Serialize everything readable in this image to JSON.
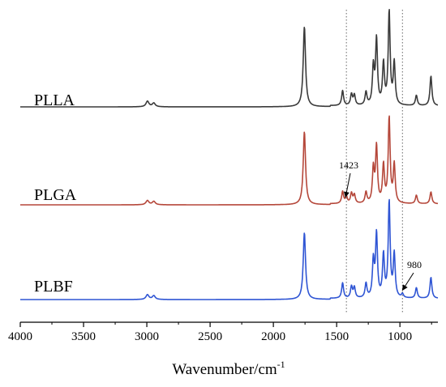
{
  "chart_data": {
    "type": "line",
    "title": "",
    "xlabel": "Wavenumber/cm",
    "xlabel_superscript": "-1",
    "xlim": [
      4000,
      700
    ],
    "x_reversed": true,
    "x_ticks": [
      4000,
      3500,
      3000,
      2500,
      2000,
      1500,
      1000
    ],
    "grid": false,
    "series": [
      {
        "name": "PLLA",
        "color": "#3a3a3a",
        "peaks": [
          {
            "x": 2995,
            "height": 0.06
          },
          {
            "x": 2945,
            "height": 0.04
          },
          {
            "x": 1755,
            "height": 0.86
          },
          {
            "x": 1453,
            "height": 0.16
          },
          {
            "x": 1383,
            "height": 0.12
          },
          {
            "x": 1360,
            "height": 0.11
          },
          {
            "x": 1268,
            "height": 0.14
          },
          {
            "x": 1210,
            "height": 0.4
          },
          {
            "x": 1185,
            "height": 0.7
          },
          {
            "x": 1130,
            "height": 0.44
          },
          {
            "x": 1085,
            "height": 1.0
          },
          {
            "x": 1045,
            "height": 0.45
          },
          {
            "x": 870,
            "height": 0.11
          },
          {
            "x": 755,
            "height": 0.32
          }
        ]
      },
      {
        "name": "PLGA",
        "color": "#b5473a",
        "peaks": [
          {
            "x": 2995,
            "height": 0.05
          },
          {
            "x": 2945,
            "height": 0.04
          },
          {
            "x": 1755,
            "height": 0.86
          },
          {
            "x": 1453,
            "height": 0.14
          },
          {
            "x": 1423,
            "height": 0.08
          },
          {
            "x": 1383,
            "height": 0.12
          },
          {
            "x": 1360,
            "height": 0.1
          },
          {
            "x": 1268,
            "height": 0.13
          },
          {
            "x": 1210,
            "height": 0.4
          },
          {
            "x": 1185,
            "height": 0.66
          },
          {
            "x": 1130,
            "height": 0.44
          },
          {
            "x": 1085,
            "height": 1.0
          },
          {
            "x": 1045,
            "height": 0.45
          },
          {
            "x": 870,
            "height": 0.1
          },
          {
            "x": 755,
            "height": 0.14
          }
        ]
      },
      {
        "name": "PLBF",
        "color": "#2f55d4",
        "peaks": [
          {
            "x": 2995,
            "height": 0.05
          },
          {
            "x": 2945,
            "height": 0.04
          },
          {
            "x": 1755,
            "height": 0.7
          },
          {
            "x": 1453,
            "height": 0.16
          },
          {
            "x": 1383,
            "height": 0.12
          },
          {
            "x": 1360,
            "height": 0.11
          },
          {
            "x": 1268,
            "height": 0.15
          },
          {
            "x": 1210,
            "height": 0.38
          },
          {
            "x": 1185,
            "height": 0.66
          },
          {
            "x": 1130,
            "height": 0.44
          },
          {
            "x": 1085,
            "height": 1.0
          },
          {
            "x": 1045,
            "height": 0.45
          },
          {
            "x": 980,
            "height": 0.04
          },
          {
            "x": 870,
            "height": 0.11
          },
          {
            "x": 755,
            "height": 0.22
          }
        ]
      }
    ],
    "reference_lines": [
      1423,
      980
    ],
    "annotations": [
      {
        "text": "1423",
        "x": 1423,
        "series": "PLGA"
      },
      {
        "text": "980",
        "x": 980,
        "series": "PLBF"
      }
    ]
  }
}
